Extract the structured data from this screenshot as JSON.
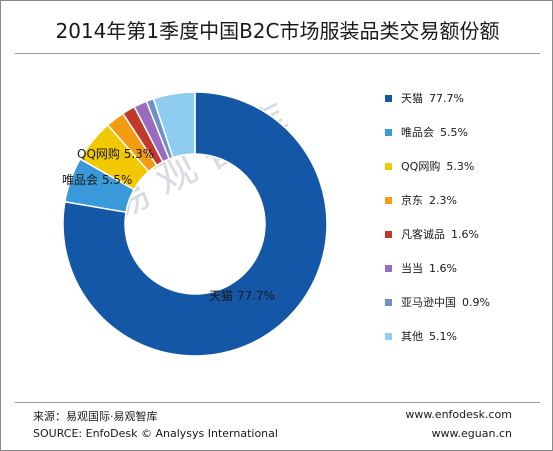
{
  "chart_data": {
    "type": "pie",
    "variant": "donut",
    "title": "2014年第1季度中国B2C市场服装品类交易额份额",
    "value_suffix": "%",
    "slices": [
      {
        "label": "天猫",
        "value": 77.7,
        "display": "77.7%",
        "color": "#1357a6"
      },
      {
        "label": "唯品会",
        "value": 5.5,
        "display": "5.5%",
        "color": "#3a9ad9"
      },
      {
        "label": "QQ网购",
        "value": 5.3,
        "display": "5.3%",
        "color": "#f2c800"
      },
      {
        "label": "京东",
        "value": 2.3,
        "display": "2.3%",
        "color": "#f39c12"
      },
      {
        "label": "凡客诚品",
        "value": 1.6,
        "display": "1.6%",
        "color": "#c0392b"
      },
      {
        "label": "当当",
        "value": 1.6,
        "display": "1.6%",
        "color": "#9b6bbf"
      },
      {
        "label": "亚马逊中国",
        "value": 0.9,
        "display": "0.9%",
        "color": "#6f8fc9"
      },
      {
        "label": "其他",
        "value": 5.1,
        "display": "5.1%",
        "color": "#8fcdf0"
      }
    ],
    "data_labels": [
      {
        "slice": "天猫",
        "text": "天猫  77.7%"
      },
      {
        "slice": "唯品会",
        "text": "唯品会  5.5%"
      },
      {
        "slice": "QQ网购",
        "text": "QQ网购  5.3%"
      }
    ],
    "legend_position": "right"
  },
  "watermark": "易观智库",
  "footer": {
    "source_cn": "来源：易观国际·易观智库",
    "source_en": "SOURCE: EnfoDesk © Analysys International",
    "url_top": "www.enfodesk.com",
    "url_bottom": "www.eguan.cn"
  }
}
